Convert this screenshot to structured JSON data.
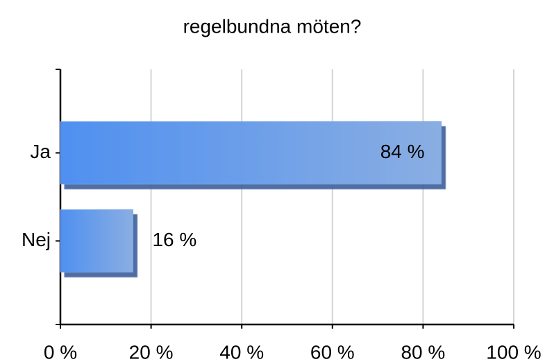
{
  "chart_data": {
    "type": "bar",
    "orientation": "horizontal",
    "title": "regelbundna möten?",
    "categories": [
      "Ja",
      "Nej"
    ],
    "values": [
      84,
      16
    ],
    "value_labels": [
      "84 %",
      "16 %"
    ],
    "color": "#5a93ea",
    "xlim": [
      0,
      100
    ],
    "xticks": [
      {
        "value": 0,
        "label": "0 %"
      },
      {
        "value": 20,
        "label": "20 %"
      },
      {
        "value": 40,
        "label": "40 %"
      },
      {
        "value": 60,
        "label": "60 %"
      },
      {
        "value": 80,
        "label": "80 %"
      },
      {
        "value": 100,
        "label": "100 %"
      }
    ],
    "grid": true
  }
}
